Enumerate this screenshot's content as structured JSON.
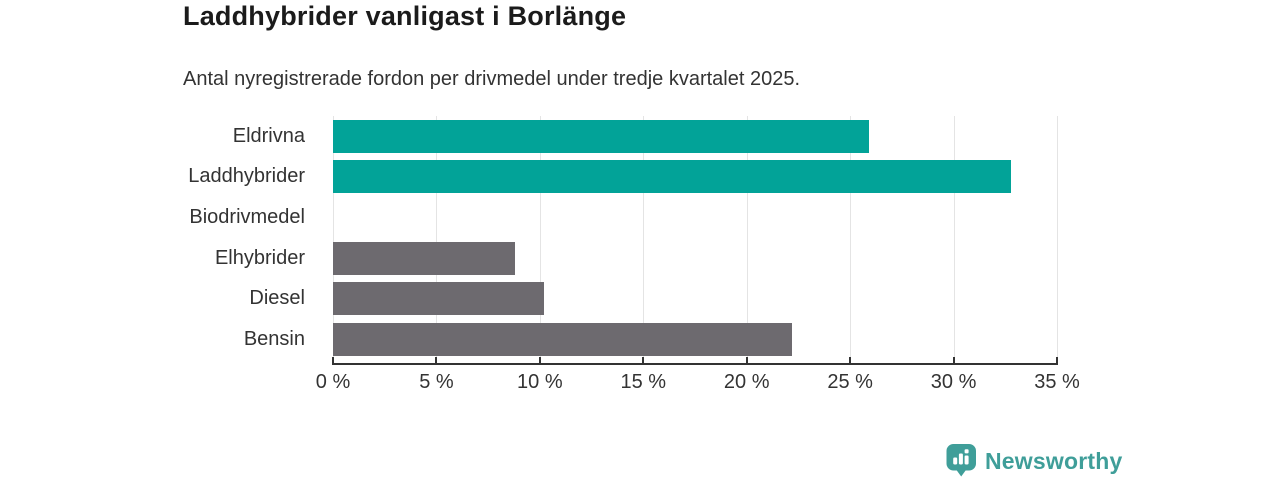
{
  "colors": {
    "highlight": "#02a398",
    "muted": "#6d6a6f",
    "grid": "#e4e4e4",
    "axis": "#333333",
    "title_text": "#1b1b1b",
    "body_text": "#333333",
    "logo": "#3f9e99"
  },
  "chart_data": {
    "type": "bar",
    "orientation": "horizontal",
    "title": "Laddhybrider vanligast i Borlänge",
    "subtitle": "Antal nyregistrerade fordon per drivmedel under tredje kvartalet 2025.",
    "categories": [
      "Eldrivna",
      "Laddhybrider",
      "Biodrivmedel",
      "Elhybrider",
      "Diesel",
      "Bensin"
    ],
    "values": [
      25.9,
      32.8,
      0,
      8.8,
      10.2,
      22.2
    ],
    "bar_color_roles": [
      "highlight",
      "highlight",
      "muted",
      "muted",
      "muted",
      "muted"
    ],
    "unit": "%",
    "xlabel": "",
    "ylabel": "",
    "xlim": [
      0,
      35
    ],
    "xticks": [
      0,
      5,
      10,
      15,
      20,
      25,
      30,
      35
    ],
    "xtick_labels": [
      "0 %",
      "5 %",
      "10 %",
      "15 %",
      "20 %",
      "25 %",
      "30 %",
      "35 %"
    ],
    "grid": true,
    "legend": false
  },
  "footer": {
    "logo_text": "Newsworthy"
  }
}
